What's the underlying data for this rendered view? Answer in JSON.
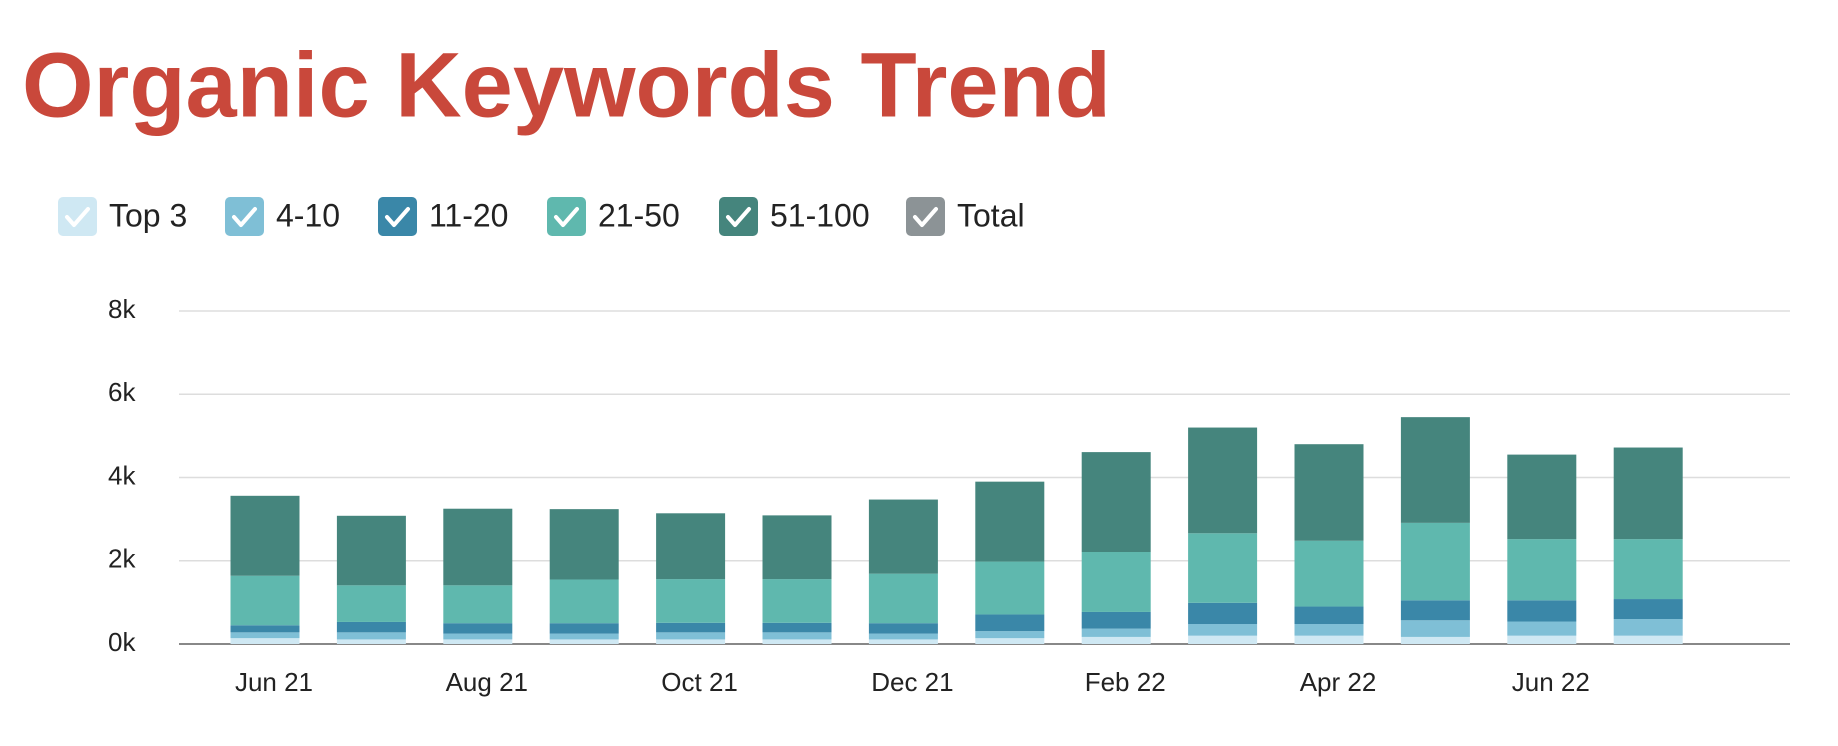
{
  "chart_data": {
    "type": "stacked_bar",
    "title": "Organic Keywords Trend",
    "categories": [
      "Jun 21",
      null,
      "Aug 21",
      null,
      "Oct 21",
      null,
      "Dec 21",
      null,
      "Feb 22",
      null,
      "Apr 22",
      null,
      "Jun 22",
      null
    ],
    "series": [
      {
        "name": "Top 3",
        "color": "#cfe8f3",
        "values": [
          140,
          110,
          110,
          110,
          110,
          110,
          110,
          140,
          170,
          200,
          200,
          170,
          200,
          200
        ]
      },
      {
        "name": "4-10",
        "color": "#7fbfd6",
        "values": [
          140,
          170,
          140,
          140,
          170,
          170,
          140,
          170,
          200,
          280,
          280,
          400,
          340,
          400
        ]
      },
      {
        "name": "11-20",
        "color": "#3a87a8",
        "values": [
          170,
          250,
          250,
          250,
          230,
          230,
          250,
          400,
          400,
          510,
          420,
          480,
          510,
          480
        ]
      },
      {
        "name": "21-50",
        "color": "#5fb8ae",
        "values": [
          1190,
          880,
          910,
          1050,
          1050,
          1050,
          1190,
          1270,
          1440,
          1670,
          1580,
          1860,
          1470,
          1440
        ]
      },
      {
        "name": "51-100",
        "color": "#45857d",
        "values": [
          1920,
          1670,
          1840,
          1690,
          1580,
          1530,
          1780,
          1920,
          2400,
          2540,
          2320,
          2540,
          2030,
          2200
        ]
      }
    ],
    "total_legend": {
      "name": "Total",
      "color": "#8c9396"
    },
    "ylim": [
      0,
      8000
    ],
    "yticks": [
      {
        "value": 0,
        "label": "0k"
      },
      {
        "value": 2000,
        "label": "2k"
      },
      {
        "value": 4000,
        "label": "4k"
      },
      {
        "value": 6000,
        "label": "6k"
      },
      {
        "value": 8000,
        "label": "8k"
      }
    ],
    "grid": true
  }
}
